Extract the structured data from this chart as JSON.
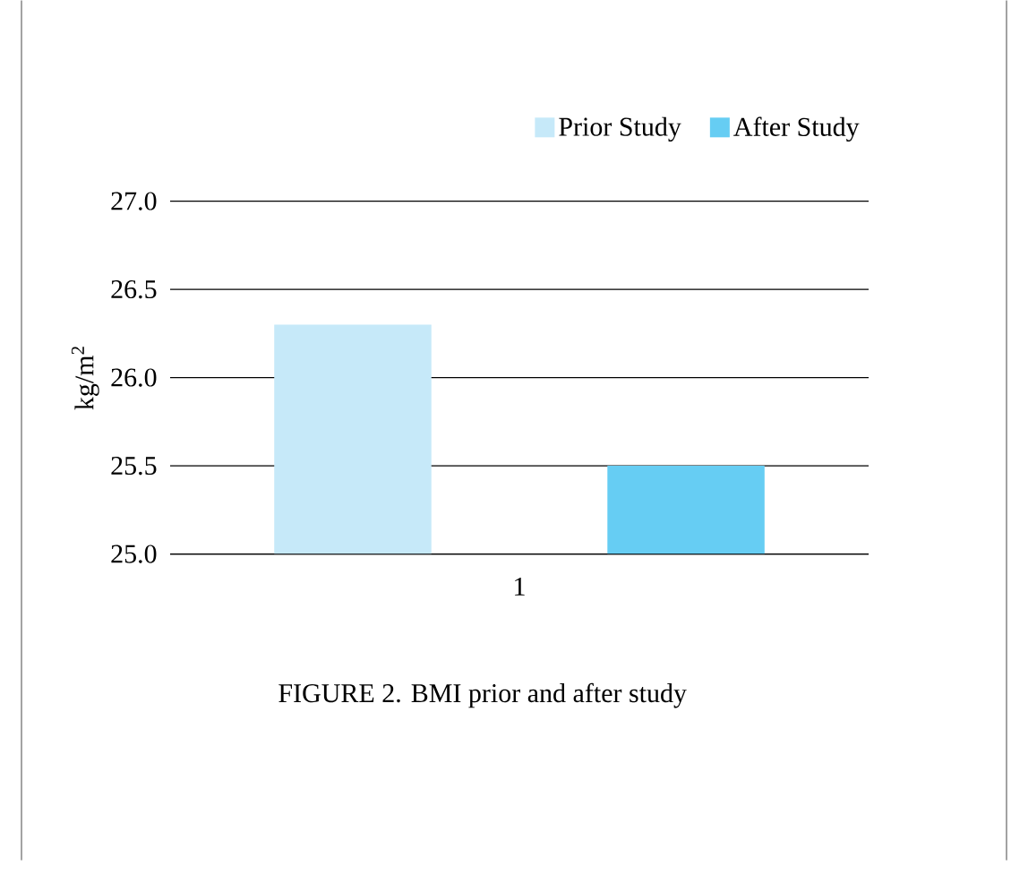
{
  "chart_data": {
    "type": "bar",
    "categories": [
      "1"
    ],
    "series": [
      {
        "name": "Prior Study",
        "color": "#c6e9f9",
        "values": [
          26.3
        ]
      },
      {
        "name": "After Study",
        "color": "#66cdf3",
        "values": [
          25.5
        ]
      }
    ],
    "ylabel": "kg/m$^{2}$",
    "ylim": [
      25.0,
      27.0
    ],
    "yticks": [
      {
        "value": 25.0,
        "label": "25.0"
      },
      {
        "value": 25.5,
        "label": "25.5"
      },
      {
        "value": 26.0,
        "label": "26.0"
      },
      {
        "value": 26.5,
        "label": "26.5"
      },
      {
        "value": 27.0,
        "label": "27.0"
      }
    ],
    "grid": "y",
    "legend": "top right",
    "annotations": [
      "FIGURE 2. BMI prior and after study"
    ]
  }
}
